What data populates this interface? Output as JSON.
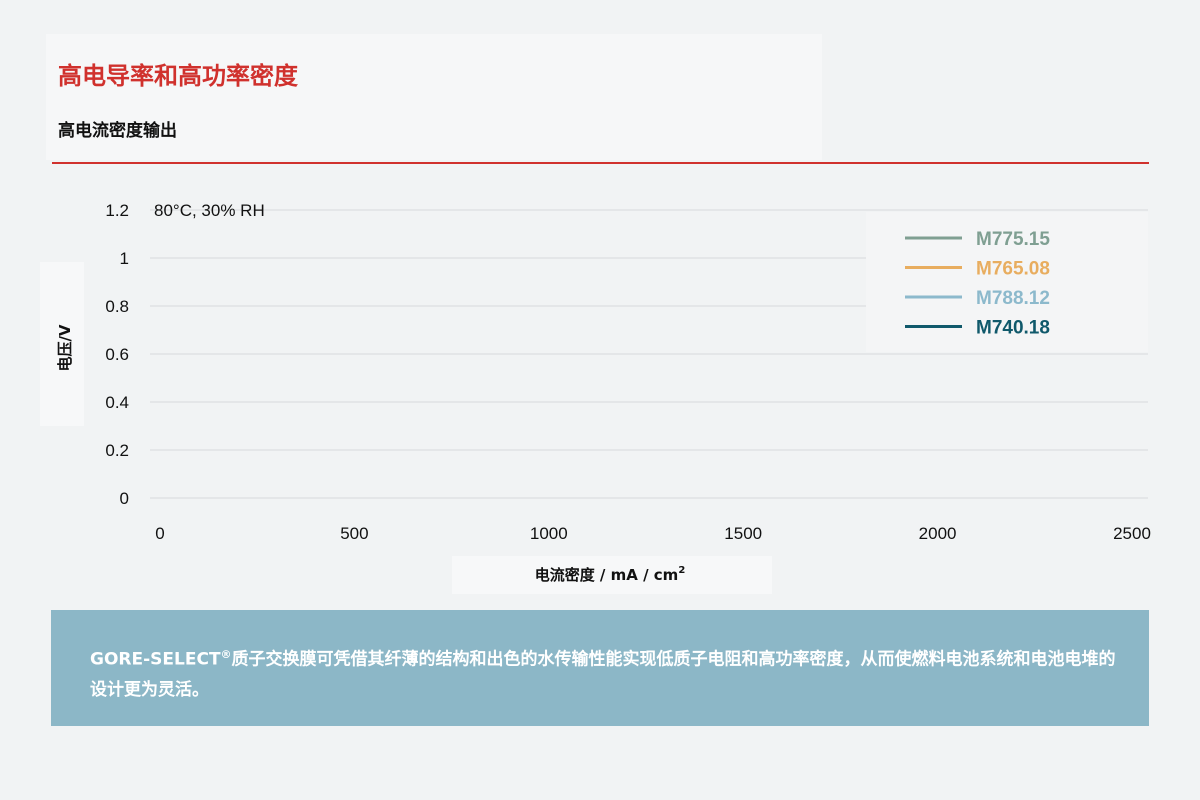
{
  "header": {
    "title": "高电导率和高功率密度",
    "subtitle": "高电流密度输出"
  },
  "chart_data": {
    "type": "line",
    "title": "",
    "annotation": "80°C, 30% RH",
    "xlabel_main": "电流密度 / mA / cm",
    "xlabel_sup": "2",
    "ylabel": "电压/V",
    "xlim": [
      0,
      2500
    ],
    "ylim": [
      0,
      1.2
    ],
    "x_ticks": [
      "0",
      "500",
      "1000",
      "1500",
      "2000",
      "2500"
    ],
    "y_ticks": [
      "0",
      "0.2",
      "0.4",
      "0.6",
      "0.8",
      "1",
      "1.2"
    ],
    "grid": "horizontal",
    "legend_position": "top-right",
    "series": [
      {
        "name": "M775.15",
        "color": "#7f9f92",
        "values": []
      },
      {
        "name": "M765.08",
        "color": "#e8ad5f",
        "values": []
      },
      {
        "name": "M788.12",
        "color": "#8cb9cc",
        "values": []
      },
      {
        "name": "M740.18",
        "color": "#10596b",
        "values": []
      }
    ]
  },
  "caption": {
    "brand": "GORE-SELECT",
    "reg_mark": "®",
    "text": "质子交换膜可凭借其纤薄的结构和出色的水传输性能实现低质子电阻和高功率密度，从而使燃料电池系统和电池电堆的设计更为灵活。"
  }
}
